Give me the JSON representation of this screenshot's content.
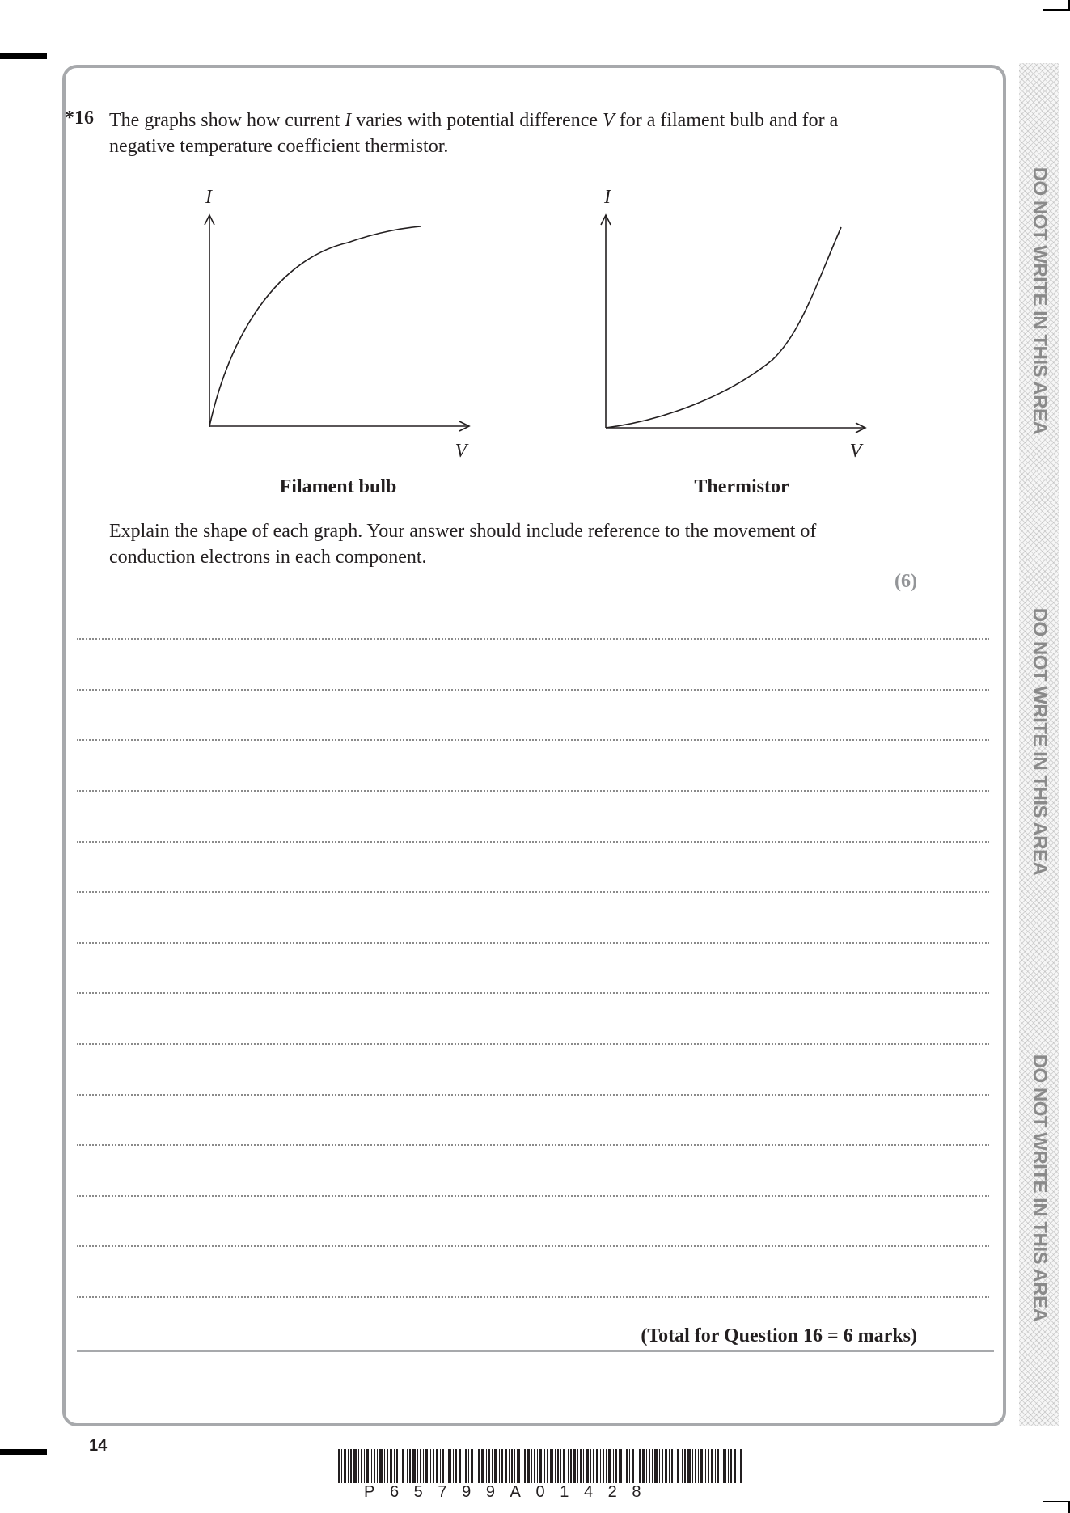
{
  "question": {
    "number": "*16",
    "text_part1": "The graphs show how current ",
    "var_I": "I",
    "text_part2": " varies with potential difference ",
    "var_V": "V",
    "text_part3": " for a filament bulb and for a negative temperature coefficient thermistor."
  },
  "graphs": [
    {
      "caption": "Filament bulb",
      "y_label": "I",
      "x_label": "V",
      "curve_shape": "concave-down rising curve through origin"
    },
    {
      "caption": "Thermistor",
      "y_label": "I",
      "x_label": "V",
      "curve_shape": "concave-up rising curve through origin"
    }
  ],
  "instruction": "Explain the shape of each graph.  Your answer should include reference to the movement of conduction electrons in each component.",
  "marks": "(6)",
  "answer_lines": 14,
  "total": "(Total for Question 16 = 6 marks)",
  "page_number": "14",
  "barcode_text": "P65799A01428",
  "side_warning": "DO NOT WRITE IN THIS AREA",
  "colors": {
    "frame": "#a7a9ac",
    "marks_grey": "#939598",
    "text": "#231f20"
  }
}
